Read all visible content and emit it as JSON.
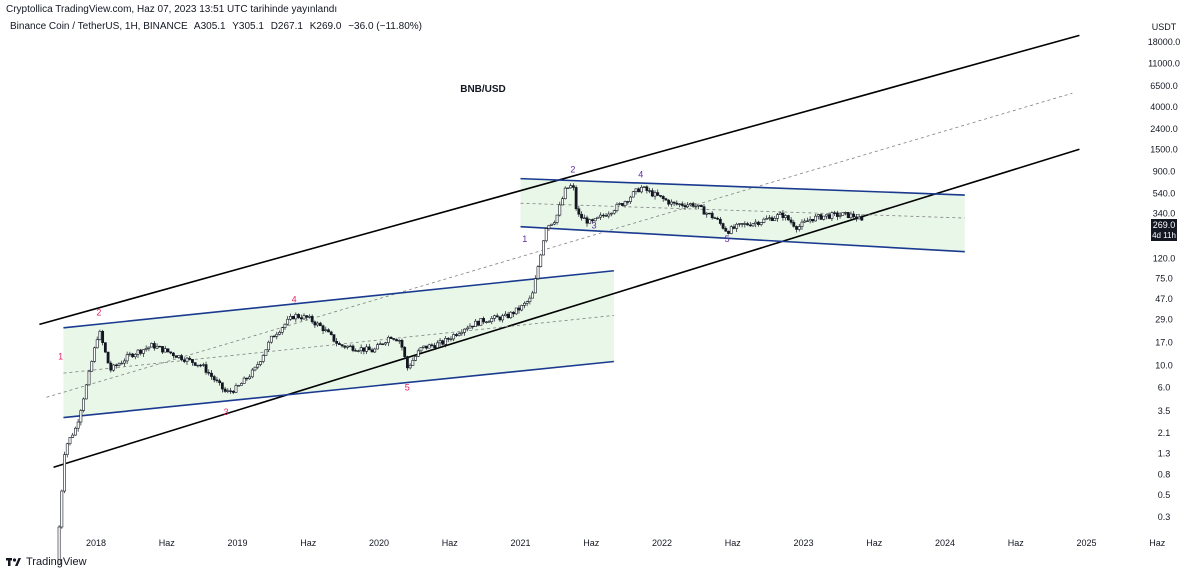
{
  "header": {
    "published_text": "Cryptollica TradingView.com, Haz 07, 2023 13:51 UTC tarihinde yayınlandı",
    "symbol": "Binance Coin / TetherUS, 1H, BINANCE",
    "open": "A305.1",
    "high": "Y305.1",
    "low": "D267.1",
    "close": "K269.0",
    "change": "−36.0 (−11.80%)"
  },
  "footer": {
    "logo_text": "TradingView"
  },
  "colors": {
    "channel_black": "#000000",
    "channel_blue": "#1a3a8f",
    "fill_green": "#e8f7e8",
    "candle": "#131722",
    "wave_red": "#e0245e",
    "wave_purple": "#5b2ca0",
    "price_label_bg": "#131722"
  },
  "chart_data": {
    "type": "candlestick",
    "title": "BNB/USD",
    "y_axis_unit": "USDT",
    "y_scale": "log",
    "y_ticks": [
      "18000.0",
      "11000.0",
      "6500.0",
      "4000.0",
      "2400.0",
      "1500.0",
      "900.0",
      "540.0",
      "340.0",
      "200.0",
      "120.0",
      "75.0",
      "47.0",
      "29.0",
      "17.0",
      "10.0",
      "6.0",
      "3.5",
      "2.1",
      "1.3",
      "0.8",
      "0.5",
      "0.3"
    ],
    "x_ticks": [
      "2018",
      "Haz",
      "2019",
      "Haz",
      "2020",
      "Haz",
      "2021",
      "Haz",
      "2022",
      "Haz",
      "2023",
      "Haz",
      "2024",
      "Haz",
      "2025",
      "Haz"
    ],
    "current_price": "269.0",
    "countdown": "4d 11h",
    "price_series": [
      {
        "t": 2017.72,
        "v": 0.1
      },
      {
        "t": 2017.78,
        "v": 1.5
      },
      {
        "t": 2017.86,
        "v": 2.4
      },
      {
        "t": 2017.94,
        "v": 7
      },
      {
        "t": 2018.02,
        "v": 23
      },
      {
        "t": 2018.1,
        "v": 9
      },
      {
        "t": 2018.25,
        "v": 13
      },
      {
        "t": 2018.4,
        "v": 16
      },
      {
        "t": 2018.55,
        "v": 13
      },
      {
        "t": 2018.75,
        "v": 10
      },
      {
        "t": 2018.92,
        "v": 5.3
      },
      {
        "t": 2019.0,
        "v": 6
      },
      {
        "t": 2019.12,
        "v": 9
      },
      {
        "t": 2019.25,
        "v": 20
      },
      {
        "t": 2019.4,
        "v": 32
      },
      {
        "t": 2019.5,
        "v": 30
      },
      {
        "t": 2019.6,
        "v": 24
      },
      {
        "t": 2019.72,
        "v": 16
      },
      {
        "t": 2019.85,
        "v": 15
      },
      {
        "t": 2019.96,
        "v": 14
      },
      {
        "t": 2020.08,
        "v": 20
      },
      {
        "t": 2020.15,
        "v": 18
      },
      {
        "t": 2020.2,
        "v": 9.5
      },
      {
        "t": 2020.3,
        "v": 15
      },
      {
        "t": 2020.45,
        "v": 17
      },
      {
        "t": 2020.6,
        "v": 24
      },
      {
        "t": 2020.75,
        "v": 29
      },
      {
        "t": 2020.9,
        "v": 31
      },
      {
        "t": 2021.0,
        "v": 38
      },
      {
        "t": 2021.08,
        "v": 48
      },
      {
        "t": 2021.13,
        "v": 110
      },
      {
        "t": 2021.18,
        "v": 250
      },
      {
        "t": 2021.25,
        "v": 300
      },
      {
        "t": 2021.32,
        "v": 600
      },
      {
        "t": 2021.37,
        "v": 650
      },
      {
        "t": 2021.4,
        "v": 330
      },
      {
        "t": 2021.5,
        "v": 270
      },
      {
        "t": 2021.62,
        "v": 350
      },
      {
        "t": 2021.72,
        "v": 430
      },
      {
        "t": 2021.85,
        "v": 620
      },
      {
        "t": 2021.95,
        "v": 520
      },
      {
        "t": 2022.08,
        "v": 420
      },
      {
        "t": 2022.22,
        "v": 420
      },
      {
        "t": 2022.38,
        "v": 300
      },
      {
        "t": 2022.46,
        "v": 225
      },
      {
        "t": 2022.55,
        "v": 255
      },
      {
        "t": 2022.7,
        "v": 285
      },
      {
        "t": 2022.85,
        "v": 330
      },
      {
        "t": 2022.96,
        "v": 245
      },
      {
        "t": 2023.05,
        "v": 300
      },
      {
        "t": 2023.15,
        "v": 320
      },
      {
        "t": 2023.28,
        "v": 330
      },
      {
        "t": 2023.36,
        "v": 320
      },
      {
        "t": 2023.43,
        "v": 269
      }
    ],
    "channels": [
      {
        "name": "outer-upper",
        "style": "black",
        "from": [
          2017.6,
          26
        ],
        "to": [
          2024.95,
          21000
        ]
      },
      {
        "name": "outer-lower",
        "style": "black",
        "from": [
          2017.7,
          0.95
        ],
        "to": [
          2024.95,
          1500
        ]
      },
      {
        "name": "outer-mid",
        "style": "dashed",
        "from": [
          2017.65,
          4.8
        ],
        "to": [
          2024.9,
          5500
        ]
      },
      {
        "name": "range1-upper",
        "style": "blue",
        "from": [
          2017.77,
          24
        ],
        "to": [
          2021.66,
          90
        ]
      },
      {
        "name": "range1-lower",
        "style": "blue",
        "from": [
          2017.77,
          3
        ],
        "to": [
          2021.66,
          11
        ]
      },
      {
        "name": "range1-mid",
        "style": "dashed",
        "from": [
          2017.77,
          8.4
        ],
        "to": [
          2021.66,
          32
        ]
      },
      {
        "name": "range2-upper",
        "style": "blue",
        "from": [
          2021.0,
          760
        ],
        "to": [
          2024.14,
          520
        ]
      },
      {
        "name": "range2-lower",
        "style": "blue",
        "from": [
          2021.0,
          250
        ],
        "to": [
          2024.14,
          140
        ]
      },
      {
        "name": "range2-mid",
        "style": "dashed",
        "from": [
          2021.0,
          430
        ],
        "to": [
          2024.14,
          305
        ]
      }
    ],
    "wave_labels": [
      {
        "text": "1",
        "t": 2017.75,
        "v": 11.5,
        "color": "red"
      },
      {
        "text": "2",
        "t": 2018.02,
        "v": 32,
        "color": "red"
      },
      {
        "text": "3",
        "t": 2018.92,
        "v": 3.2,
        "color": "red"
      },
      {
        "text": "4",
        "t": 2019.4,
        "v": 43,
        "color": "red"
      },
      {
        "text": "5",
        "t": 2020.2,
        "v": 5.6,
        "color": "red"
      },
      {
        "text": "1",
        "t": 2021.03,
        "v": 175,
        "color": "purple"
      },
      {
        "text": "2",
        "t": 2021.37,
        "v": 880,
        "color": "purple"
      },
      {
        "text": "3",
        "t": 2021.52,
        "v": 240,
        "color": "purple"
      },
      {
        "text": "4",
        "t": 2021.85,
        "v": 780,
        "color": "purple"
      },
      {
        "text": "5",
        "t": 2022.46,
        "v": 175,
        "color": "purple"
      }
    ]
  }
}
